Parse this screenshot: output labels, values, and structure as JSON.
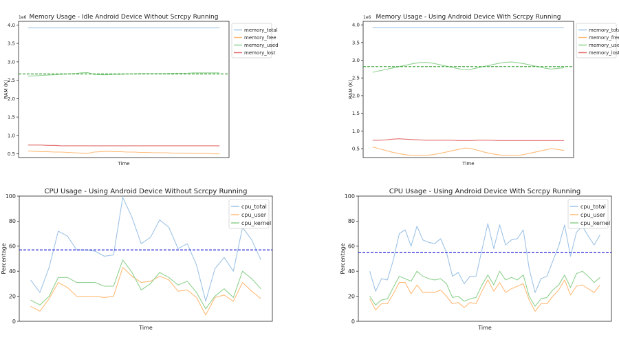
{
  "chart_data": [
    {
      "type": "line",
      "title": "Memory Usage - Idle Android Device Without Scrcpy Running",
      "xlabel": "Time",
      "ylabel": "RAM (K)",
      "ylim": [
        0.4,
        4.1
      ],
      "scale_label": "1e6",
      "yticks": [
        0.5,
        1.0,
        1.5,
        2.0,
        2.5,
        3.0,
        3.5,
        4.0
      ],
      "ytick_labels": [
        "0.5",
        "1.0",
        "1.5",
        "2.0",
        "2.5",
        "3.0",
        "3.5",
        "4.0"
      ],
      "legend": "top-right",
      "grid": false,
      "reference_line": {
        "y": 2.67,
        "color": "#2ca02c",
        "style": "dashed"
      },
      "series": [
        {
          "name": "memory_total",
          "color": "#9ec3e6",
          "values": [
            3.92,
            3.92,
            3.92,
            3.92,
            3.92,
            3.92,
            3.92,
            3.92,
            3.92,
            3.92,
            3.92,
            3.92,
            3.92,
            3.92,
            3.92,
            3.92,
            3.92,
            3.92,
            3.92,
            3.92,
            3.92,
            3.92,
            3.92,
            3.92,
            3.92,
            3.92,
            3.92,
            3.92,
            3.92,
            3.92
          ]
        },
        {
          "name": "memory_free",
          "color": "#ffbb78",
          "values": [
            0.58,
            0.57,
            0.56,
            0.56,
            0.55,
            0.55,
            0.54,
            0.53,
            0.52,
            0.51,
            0.55,
            0.56,
            0.57,
            0.56,
            0.56,
            0.55,
            0.55,
            0.54,
            0.54,
            0.53,
            0.53,
            0.53,
            0.52,
            0.52,
            0.52,
            0.51,
            0.51,
            0.51,
            0.5,
            0.5
          ]
        },
        {
          "name": "memory_used",
          "color": "#8fd18f",
          "values": [
            2.61,
            2.62,
            2.63,
            2.64,
            2.65,
            2.66,
            2.67,
            2.68,
            2.7,
            2.71,
            2.66,
            2.65,
            2.65,
            2.66,
            2.66,
            2.67,
            2.67,
            2.68,
            2.68,
            2.68,
            2.68,
            2.68,
            2.69,
            2.69,
            2.69,
            2.7,
            2.7,
            2.7,
            2.7,
            2.7
          ]
        },
        {
          "name": "memory_lost",
          "color": "#e36f6f",
          "values": [
            0.74,
            0.74,
            0.74,
            0.73,
            0.73,
            0.72,
            0.72,
            0.72,
            0.72,
            0.72,
            0.72,
            0.72,
            0.72,
            0.72,
            0.72,
            0.72,
            0.72,
            0.72,
            0.72,
            0.72,
            0.72,
            0.72,
            0.72,
            0.72,
            0.72,
            0.72,
            0.72,
            0.72,
            0.72,
            0.72
          ]
        }
      ]
    },
    {
      "type": "line",
      "title": "Memory Usage - Using Android Device With Scrcpy Running",
      "xlabel": "Time",
      "ylabel": "RAM (K)",
      "ylim": [
        0.25,
        4.1
      ],
      "scale_label": "1e6",
      "yticks": [
        0.5,
        1.0,
        1.5,
        2.0,
        2.5,
        3.0,
        3.5,
        4.0
      ],
      "ytick_labels": [
        "0.5",
        "1.0",
        "1.5",
        "2.0",
        "2.5",
        "3.0",
        "3.5",
        "4.0"
      ],
      "legend": "top-right",
      "grid": false,
      "reference_line": {
        "y": 2.82,
        "color": "#2ca02c",
        "style": "dashed"
      },
      "series": [
        {
          "name": "memory_total",
          "color": "#9ec3e6",
          "values": [
            3.92,
            3.92,
            3.92,
            3.92,
            3.92,
            3.92,
            3.92,
            3.92,
            3.92,
            3.92,
            3.92,
            3.92,
            3.92,
            3.92,
            3.92,
            3.92,
            3.92,
            3.92,
            3.92,
            3.92,
            3.92,
            3.92,
            3.92,
            3.92,
            3.92,
            3.92,
            3.92,
            3.92,
            3.92,
            3.92
          ]
        },
        {
          "name": "memory_free",
          "color": "#ffbb78",
          "values": [
            0.55,
            0.5,
            0.45,
            0.4,
            0.36,
            0.33,
            0.31,
            0.3,
            0.31,
            0.33,
            0.36,
            0.4,
            0.44,
            0.48,
            0.52,
            0.5,
            0.45,
            0.4,
            0.36,
            0.33,
            0.31,
            0.3,
            0.31,
            0.34,
            0.38,
            0.42,
            0.46,
            0.5,
            0.48,
            0.45
          ]
        },
        {
          "name": "memory_used",
          "color": "#8fd18f",
          "values": [
            2.66,
            2.7,
            2.74,
            2.78,
            2.82,
            2.86,
            2.9,
            2.93,
            2.94,
            2.92,
            2.88,
            2.84,
            2.8,
            2.76,
            2.73,
            2.75,
            2.79,
            2.83,
            2.87,
            2.91,
            2.94,
            2.95,
            2.93,
            2.9,
            2.86,
            2.82,
            2.78,
            2.75,
            2.77,
            2.79
          ]
        },
        {
          "name": "memory_lost",
          "color": "#e36f6f",
          "values": [
            0.74,
            0.74,
            0.75,
            0.77,
            0.78,
            0.77,
            0.76,
            0.75,
            0.74,
            0.74,
            0.74,
            0.74,
            0.74,
            0.73,
            0.73,
            0.73,
            0.74,
            0.74,
            0.74,
            0.73,
            0.73,
            0.73,
            0.73,
            0.73,
            0.73,
            0.73,
            0.73,
            0.73,
            0.73,
            0.73
          ]
        }
      ]
    },
    {
      "type": "line",
      "title": "CPU Usage - Using Android Device Without Scrcpy Running",
      "xlabel": "Time",
      "ylabel": "Percentage",
      "ylim": [
        0,
        100
      ],
      "yticks": [
        0,
        20,
        40,
        60,
        80,
        100
      ],
      "ytick_labels": [
        "0",
        "20",
        "40",
        "60",
        "80",
        "100"
      ],
      "legend": "top-right",
      "grid": false,
      "reference_line": {
        "y": 57,
        "color": "#1f1fd6",
        "style": "dashed"
      },
      "series": [
        {
          "name": "cpu_total",
          "color": "#9ec3e6",
          "values": [
            33,
            23,
            43,
            72,
            68,
            57,
            57,
            56,
            52,
            53,
            99,
            83,
            62,
            67,
            81,
            75,
            58,
            62,
            45,
            16,
            42,
            51,
            40,
            75,
            65,
            49
          ]
        },
        {
          "name": "cpu_user",
          "color": "#ffbb78",
          "values": [
            12,
            8,
            18,
            31,
            27,
            20,
            20,
            20,
            19,
            20,
            43,
            36,
            31,
            32,
            36,
            33,
            24,
            25,
            19,
            5,
            19,
            21,
            16,
            31,
            24,
            18
          ]
        },
        {
          "name": "cpu_kernel",
          "color": "#8fd18f",
          "values": [
            17,
            13,
            20,
            35,
            35,
            31,
            31,
            31,
            28,
            28,
            49,
            39,
            25,
            30,
            39,
            35,
            29,
            32,
            23,
            10,
            20,
            26,
            19,
            40,
            34,
            26
          ]
        }
      ]
    },
    {
      "type": "line",
      "title": "CPU Usage - Using Android Device With Scrcpy Running",
      "xlabel": "Time",
      "ylabel": "Percentage",
      "ylim": [
        0,
        100
      ],
      "yticks": [
        0,
        20,
        40,
        60,
        80,
        100
      ],
      "ytick_labels": [
        "0",
        "20",
        "40",
        "60",
        "80",
        "100"
      ],
      "legend": "top-right",
      "grid": false,
      "reference_line": {
        "y": 55,
        "color": "#1f1fd6",
        "style": "dashed"
      },
      "series": [
        {
          "name": "cpu_total",
          "color": "#9ec3e6",
          "values": [
            40,
            24,
            34,
            33,
            49,
            70,
            73,
            60,
            76,
            65,
            63,
            62,
            66,
            55,
            36,
            39,
            30,
            36,
            36,
            57,
            78,
            58,
            77,
            61,
            65,
            66,
            73,
            42,
            23,
            34,
            36,
            48,
            60,
            77,
            52,
            71,
            76,
            68,
            61,
            69
          ]
        },
        {
          "name": "cpu_user",
          "color": "#ffbb78",
          "values": [
            18,
            9,
            14,
            14,
            22,
            31,
            31,
            22,
            29,
            23,
            23,
            23,
            25,
            20,
            14,
            15,
            11,
            15,
            14,
            24,
            33,
            24,
            31,
            23,
            26,
            28,
            30,
            17,
            8,
            14,
            14,
            20,
            25,
            33,
            21,
            28,
            29,
            26,
            23,
            29
          ]
        },
        {
          "name": "cpu_kernel",
          "color": "#8fd18f",
          "values": [
            20,
            13,
            17,
            18,
            27,
            36,
            34,
            32,
            40,
            36,
            34,
            33,
            34,
            30,
            19,
            20,
            16,
            18,
            19,
            29,
            37,
            29,
            40,
            33,
            35,
            33,
            37,
            20,
            12,
            18,
            19,
            25,
            29,
            37,
            27,
            38,
            40,
            36,
            31,
            35
          ]
        }
      ]
    }
  ]
}
